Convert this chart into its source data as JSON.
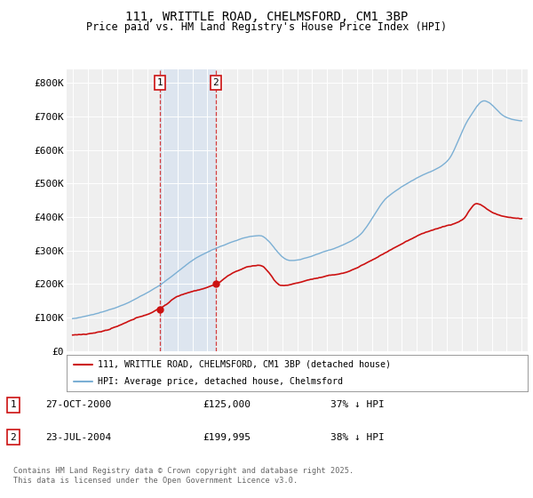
{
  "title": "111, WRITTLE ROAD, CHELMSFORD, CM1 3BP",
  "subtitle": "Price paid vs. HM Land Registry's House Price Index (HPI)",
  "ylabel_ticks": [
    "£0",
    "£100K",
    "£200K",
    "£300K",
    "£400K",
    "£500K",
    "£600K",
    "£700K",
    "£800K"
  ],
  "ytick_values": [
    0,
    100000,
    200000,
    300000,
    400000,
    500000,
    600000,
    700000,
    800000
  ],
  "ylim": [
    0,
    840000
  ],
  "xlim_start": 1994.6,
  "xlim_end": 2025.4,
  "hpi_color": "#7bafd4",
  "price_color": "#cc1111",
  "sale1_date": 2000.82,
  "sale1_price": 125000,
  "sale2_date": 2004.56,
  "sale2_price": 199995,
  "legend_line1": "111, WRITTLE ROAD, CHELMSFORD, CM1 3BP (detached house)",
  "legend_line2": "HPI: Average price, detached house, Chelmsford",
  "footnote": "Contains HM Land Registry data © Crown copyright and database right 2025.\nThis data is licensed under the Open Government Licence v3.0.",
  "background_color": "#f0f0f0"
}
